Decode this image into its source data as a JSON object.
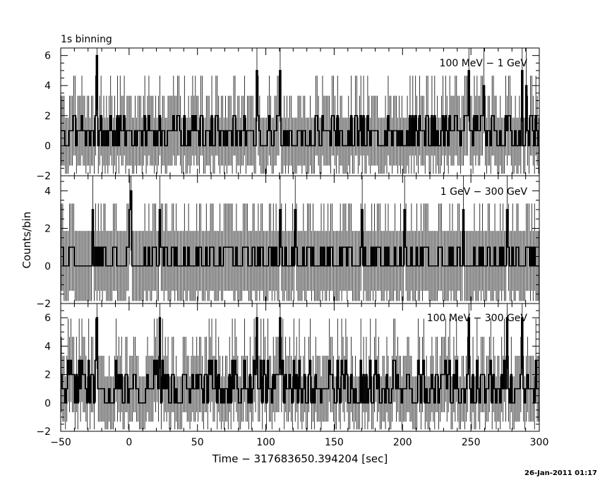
{
  "header": {
    "binning_label": "1s binning"
  },
  "footer": {
    "timestamp": "26-Jan-2011 01:17"
  },
  "axes": {
    "xlabel": "Time − 317683650.394204 [sec]",
    "ylabel": "Counts/bin",
    "xlim": [
      -50,
      300
    ],
    "xticks": [
      -50,
      0,
      50,
      100,
      150,
      200,
      250,
      300
    ]
  },
  "chart_data": [
    {
      "type": "line",
      "style": "step-with-error-bars",
      "title": "100 MeV − 1 GeV",
      "ylim": [
        -2,
        6.5
      ],
      "yticks": [
        -2,
        0,
        2,
        4,
        6
      ],
      "bin_width": 1,
      "x_start": -50,
      "peaks": [
        {
          "x": -24,
          "y": 6
        },
        {
          "x": 93,
          "y": 5
        },
        {
          "x": 110,
          "y": 5
        },
        {
          "x": 248,
          "y": 5
        },
        {
          "x": 287,
          "y": 5
        },
        {
          "x": 259,
          "y": 4
        },
        {
          "x": 290,
          "y": 4
        }
      ],
      "typical_counts": [
        0,
        1,
        2
      ],
      "mean_count": 0.9
    },
    {
      "type": "line",
      "style": "step-with-error-bars",
      "title": "1 GeV − 300 GeV",
      "ylim": [
        -2,
        4.8
      ],
      "yticks": [
        -2,
        0,
        2,
        4
      ],
      "bin_width": 1,
      "x_start": -50,
      "peaks": [
        {
          "x": 1,
          "y": 4
        },
        {
          "x": -27,
          "y": 3
        },
        {
          "x": 0,
          "y": 3
        },
        {
          "x": 22,
          "y": 3
        },
        {
          "x": 110,
          "y": 3
        },
        {
          "x": 121,
          "y": 3
        },
        {
          "x": 170,
          "y": 3
        },
        {
          "x": 201,
          "y": 3
        },
        {
          "x": 244,
          "y": 3
        },
        {
          "x": 276,
          "y": 3
        }
      ],
      "typical_counts": [
        0,
        1
      ],
      "mean_count": 0.4
    },
    {
      "type": "line",
      "style": "step-with-error-bars",
      "title": "100 MeV − 300 GeV",
      "ylim": [
        -2,
        7
      ],
      "yticks": [
        -2,
        0,
        2,
        4,
        6
      ],
      "bin_width": 1,
      "x_start": -50,
      "peaks": [
        {
          "x": -24,
          "y": 6
        },
        {
          "x": 22,
          "y": 6
        },
        {
          "x": 93,
          "y": 6
        },
        {
          "x": 110,
          "y": 6
        },
        {
          "x": 248,
          "y": 6
        },
        {
          "x": 276,
          "y": 6
        },
        {
          "x": 287,
          "y": 6
        }
      ],
      "typical_counts": [
        0,
        1,
        2,
        3
      ],
      "mean_count": 1.3
    }
  ]
}
